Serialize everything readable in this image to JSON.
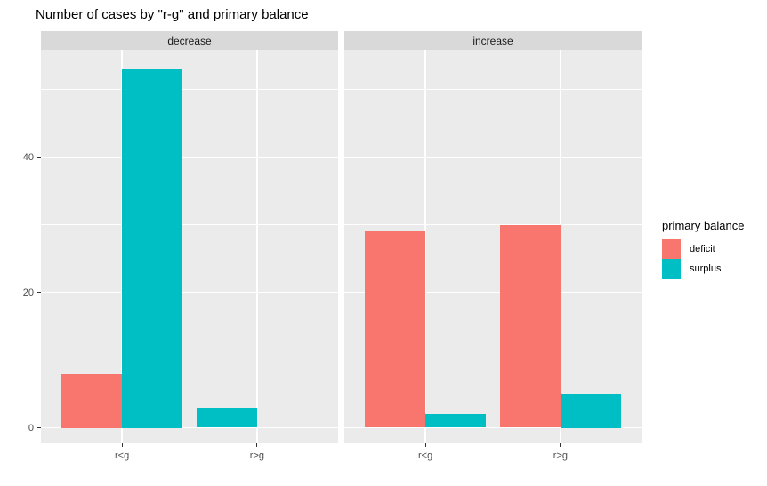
{
  "chart_data": {
    "type": "bar",
    "title": "Number of cases by \"r-g\" and primary balance",
    "bar_layout": "dodge",
    "categories": [
      "r<g",
      "r>g"
    ],
    "facets": [
      {
        "label": "decrease",
        "series": [
          {
            "name": "deficit",
            "values": [
              8,
              null
            ]
          },
          {
            "name": "surplus",
            "values": [
              53,
              3
            ]
          }
        ]
      },
      {
        "label": "increase",
        "series": [
          {
            "name": "deficit",
            "values": [
              29,
              30
            ]
          },
          {
            "name": "surplus",
            "values": [
              2,
              5
            ]
          }
        ]
      }
    ],
    "xlabel": "",
    "ylabel": "",
    "y_ticks": [
      0,
      20,
      40
    ],
    "y_minor_gridlines": [
      10,
      30,
      50
    ],
    "ylim": [
      -2.3,
      55.9
    ],
    "grid": "on",
    "legend": {
      "title": "primary balance",
      "position": "right",
      "entries": [
        {
          "label": "deficit",
          "color": "#F8766D"
        },
        {
          "label": "surplus",
          "color": "#00BFC4"
        }
      ]
    },
    "colors": {
      "deficit": "#F8766D",
      "surplus": "#00BFC4",
      "panel_bg": "#EBEBEB",
      "strip_bg": "#D9D9D9",
      "gridline": "#FFFFFF",
      "axis_text": "#4D4D4D",
      "tick_mark": "#333333",
      "title_text": "#000000"
    }
  }
}
